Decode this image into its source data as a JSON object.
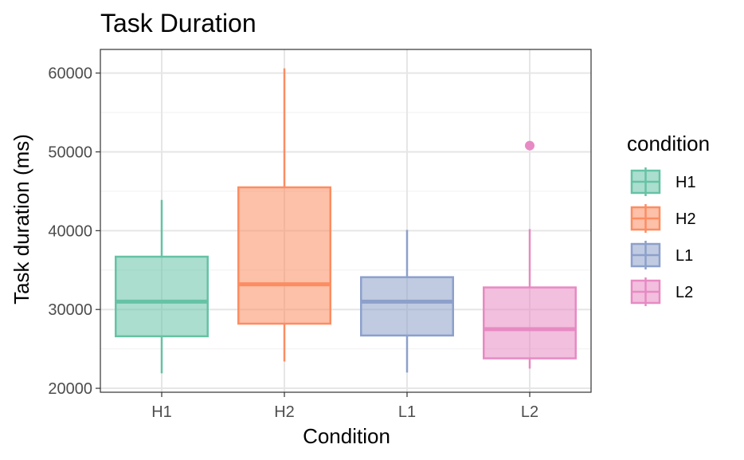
{
  "chart_data": {
    "type": "boxplot",
    "title": "Task Duration",
    "xlabel": "Condition",
    "ylabel": "Task duration (ms)",
    "categories": [
      "H1",
      "H2",
      "L1",
      "L2"
    ],
    "ylim": [
      19500,
      63000
    ],
    "yticks": [
      20000,
      30000,
      40000,
      50000,
      60000
    ],
    "grid": true,
    "legend": {
      "title": "condition",
      "position": "right",
      "entries": [
        "H1",
        "H2",
        "L1",
        "L2"
      ]
    },
    "colors": {
      "H1": "#66c2a5",
      "H2": "#fc8d62",
      "L1": "#8da0cb",
      "L2": "#e78ac3"
    },
    "boxes": [
      {
        "category": "H1",
        "min": 21900,
        "q1": 26600,
        "median": 31000,
        "q3": 36700,
        "max": 43900,
        "outliers": []
      },
      {
        "category": "H2",
        "min": 23400,
        "q1": 28200,
        "median": 33200,
        "q3": 45500,
        "max": 60600,
        "outliers": []
      },
      {
        "category": "L1",
        "min": 22000,
        "q1": 26700,
        "median": 31000,
        "q3": 34100,
        "max": 40100,
        "outliers": []
      },
      {
        "category": "L2",
        "min": 22500,
        "q1": 23800,
        "median": 27500,
        "q3": 32800,
        "max": 40200,
        "outliers": [
          50800
        ]
      }
    ]
  }
}
